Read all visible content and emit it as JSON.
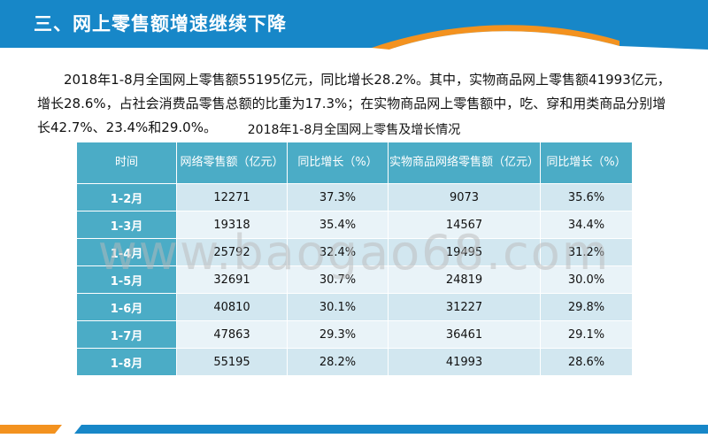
{
  "header": {
    "title": "三、网上零售额增速继续下降",
    "colors": {
      "band": "#1787c8",
      "accent": "#f3921f"
    }
  },
  "intro": "2018年1-8月全国网上零售额55195亿元，同比增长28.2%。其中，实物商品网上零售额41993亿元，增长28.6%，占社会消费品零售总额的比重为17.3%；在实物商品网上零售额中，吃、穿和用类商品分别增长42.7%、23.4%和29.0%。",
  "table": {
    "title": "2018年1-8月全国网上零售及增长情况",
    "headers": [
      "时间",
      "网络零售额（亿元）",
      "同比增长（%）",
      "实物商品网络零售额（亿元）",
      "同比增长（%）"
    ],
    "rows": [
      [
        "1-2月",
        "12271",
        "37.3%",
        "9073",
        "35.6%"
      ],
      [
        "1-3月",
        "19318",
        "35.4%",
        "14567",
        "34.4%"
      ],
      [
        "1-4月",
        "25792",
        "32.4%",
        "19495",
        "31.2%"
      ],
      [
        "1-5月",
        "32691",
        "30.7%",
        "24819",
        "30.0%"
      ],
      [
        "1-6月",
        "40810",
        "30.1%",
        "31227",
        "29.8%"
      ],
      [
        "1-7月",
        "47863",
        "29.3%",
        "36461",
        "29.1%"
      ],
      [
        "1-8月",
        "55195",
        "28.2%",
        "41993",
        "28.6%"
      ]
    ]
  },
  "watermark": "www.baogao68.com"
}
